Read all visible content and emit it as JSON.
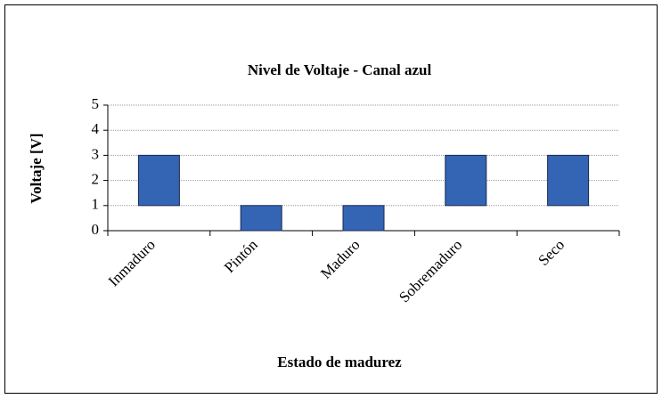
{
  "chart_data": {
    "type": "range",
    "title": "Nivel de Voltaje - Canal azul",
    "x_label": "Estado de madurez",
    "y_label": "Voltaje [V]",
    "categories": [
      "Inmaduro",
      "Pintón",
      "Maduro",
      "Sobremaduro",
      "Seco"
    ],
    "low": [
      1,
      0,
      0,
      1,
      1
    ],
    "high": [
      3,
      1,
      1,
      3,
      3
    ],
    "color": "#3464b4",
    "ylim": [
      0,
      5
    ],
    "yticks": [
      0,
      1,
      2,
      3,
      4,
      5
    ],
    "grid": true
  }
}
